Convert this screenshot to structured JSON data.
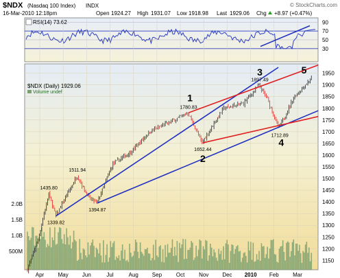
{
  "header": {
    "symbol": "$NDX",
    "name": "(Nasdaq 100 Index)",
    "exchange": "INDX",
    "copyright": "© StockCharts.com",
    "date": "16-Mar-2010 12:18pm",
    "open_label": "Open",
    "open": "1924.27",
    "high_label": "High",
    "high": "1931.07",
    "low_label": "Low",
    "low": "1918.98",
    "last_label": "Last",
    "last": "1929.06",
    "chg_label": "Chg",
    "chg": "+8.97 (+0.47%)",
    "chg_icon": "up-triangle-icon"
  },
  "chart_data": {
    "type": "candlestick",
    "rsi_panel": {
      "label": "RSI(14) 73.62",
      "ylim": [
        0,
        100
      ],
      "ticks": [
        30,
        50,
        70,
        90
      ],
      "value": 73.62,
      "color": "#3040c0"
    },
    "price_panel": {
      "label": "$NDX (Daily) 1929.06",
      "volume_label": "Volume undef",
      "ylim": [
        1110,
        1990
      ],
      "yticks": [
        1150,
        1200,
        1250,
        1300,
        1350,
        1400,
        1450,
        1500,
        1550,
        1600,
        1650,
        1700,
        1750,
        1800,
        1850,
        1900,
        1950
      ],
      "volume_ticks": [
        "2.0B",
        "1.5B",
        "1.0B",
        "500M"
      ],
      "x_labels": [
        "Apr",
        "May",
        "Jun",
        "Jul",
        "Aug",
        "Sep",
        "Oct",
        "Nov",
        "Dec",
        "2010",
        "Feb",
        "Mar"
      ],
      "annotations": [
        {
          "text": "1435.80",
          "value": 1435.8
        },
        {
          "text": "1339.82",
          "value": 1339.82
        },
        {
          "text": "1511.94",
          "value": 1511.94
        },
        {
          "text": "1394.87",
          "value": 1394.87
        },
        {
          "text": "1780.83",
          "value": 1780.83
        },
        {
          "text": "1652.44",
          "value": 1652.44
        },
        {
          "text": "1897.49",
          "value": 1897.49
        },
        {
          "text": "1712.89",
          "value": 1712.89
        }
      ],
      "wave_labels": [
        "1",
        "2",
        "3",
        "4",
        "5"
      ],
      "colors": {
        "up": "#202020",
        "down": "#e02020",
        "volume": "#7aa070",
        "blue_line": "#2030c0",
        "red_line": "#e02020"
      }
    }
  }
}
